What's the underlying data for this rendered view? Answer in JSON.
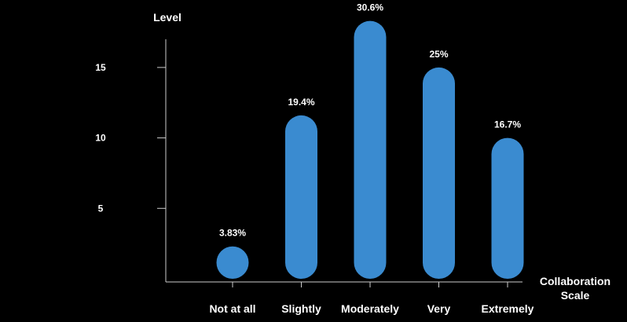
{
  "chart_data": {
    "type": "bar",
    "title": "",
    "ylabel": "Level",
    "xlabel": [
      "Collaboration",
      "Scale"
    ],
    "categories": [
      "Not at all",
      "Slightly",
      "Moderately",
      "Very",
      "Extremely"
    ],
    "values": [
      2.3,
      11.6,
      18.3,
      15.0,
      10.0
    ],
    "data_labels": [
      "3.83%",
      "19.4%",
      "30.6%",
      "25%",
      "16.7%"
    ],
    "yticks": [
      5,
      10,
      15
    ],
    "ylim": [
      0,
      17
    ],
    "grid": false,
    "colors": {
      "bar": "#3a8bd0",
      "axis": "#cccccc",
      "text": "#ffffff",
      "background": "#000000"
    }
  }
}
